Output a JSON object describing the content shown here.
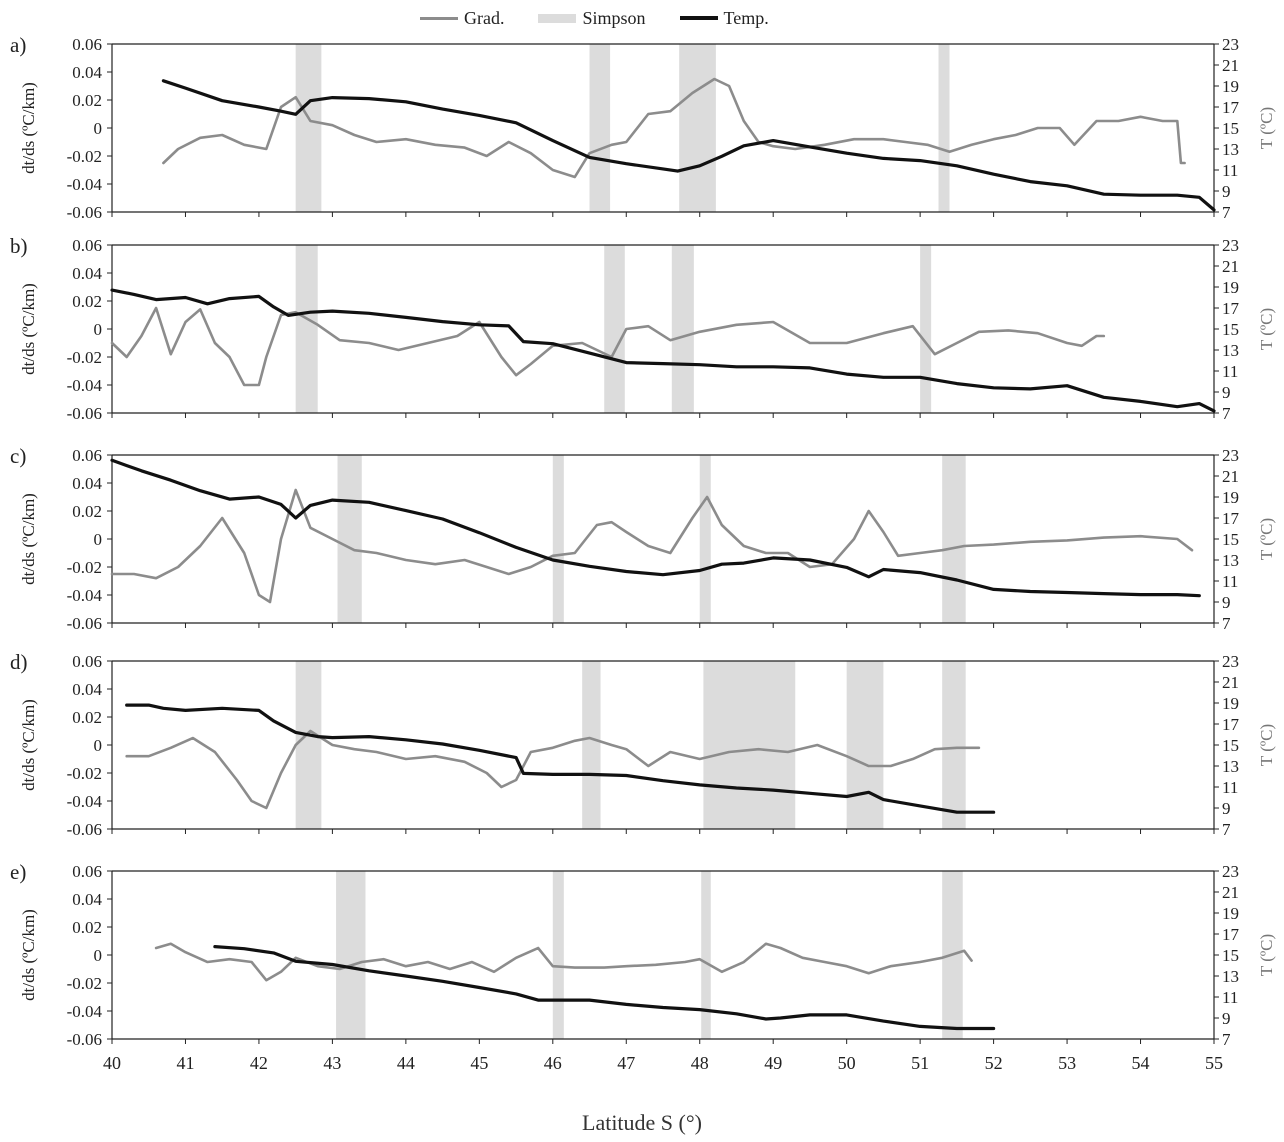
{
  "legend": {
    "grad_label": "Grad.",
    "simpson_label": "Simpson",
    "temp_label": "Temp."
  },
  "colors": {
    "grad": "#8c8c8c",
    "simpson": "#dcdcdc",
    "temp": "#111111"
  },
  "xaxis_label": "Latitude S (°)",
  "chart_data": [
    {
      "type": "line",
      "panel_label": "a)",
      "xlim": [
        40,
        55
      ],
      "ylabel": "dt/ds (ºC/km)",
      "ylim": [
        -0.06,
        0.06
      ],
      "y2label": "T (ºC)",
      "y2lim": [
        7,
        23
      ],
      "simpson_bands": [
        [
          42.5,
          42.85
        ],
        [
          46.5,
          46.78
        ],
        [
          47.72,
          48.22
        ],
        [
          51.25,
          51.4
        ]
      ],
      "series": [
        {
          "name": "Grad.",
          "axis": "left",
          "x": [
            40.7,
            40.9,
            41.2,
            41.5,
            41.8,
            42.1,
            42.3,
            42.5,
            42.7,
            43.0,
            43.3,
            43.6,
            44.0,
            44.4,
            44.8,
            45.1,
            45.4,
            45.7,
            46.0,
            46.3,
            46.5,
            46.8,
            47.0,
            47.3,
            47.6,
            47.9,
            48.2,
            48.4,
            48.6,
            48.8,
            49.0,
            49.3,
            49.7,
            50.1,
            50.5,
            50.8,
            51.1,
            51.4,
            51.7,
            52.0,
            52.3,
            52.6,
            52.9,
            53.1,
            53.4,
            53.7,
            54.0,
            54.3,
            54.5,
            54.55,
            54.6
          ],
          "y": [
            -0.025,
            -0.015,
            -0.007,
            -0.005,
            -0.012,
            -0.015,
            0.015,
            0.022,
            0.005,
            0.002,
            -0.005,
            -0.01,
            -0.008,
            -0.012,
            -0.014,
            -0.02,
            -0.01,
            -0.018,
            -0.03,
            -0.035,
            -0.018,
            -0.012,
            -0.01,
            0.01,
            0.012,
            0.025,
            0.035,
            0.03,
            0.005,
            -0.01,
            -0.013,
            -0.015,
            -0.012,
            -0.008,
            -0.008,
            -0.01,
            -0.012,
            -0.017,
            -0.012,
            -0.008,
            -0.005,
            0.0,
            0.0,
            -0.012,
            0.005,
            0.005,
            0.008,
            0.005,
            0.005,
            -0.025,
            -0.025
          ]
        },
        {
          "name": "Temp.",
          "axis": "right",
          "x": [
            40.7,
            41.0,
            41.5,
            42.0,
            42.3,
            42.5,
            42.7,
            43.0,
            43.5,
            44.0,
            44.5,
            45.0,
            45.5,
            46.0,
            46.5,
            47.0,
            47.5,
            47.7,
            48.0,
            48.3,
            48.6,
            49.0,
            49.5,
            50.0,
            50.5,
            51.0,
            51.5,
            52.0,
            52.5,
            53.0,
            53.5,
            54.0,
            54.5,
            54.8,
            55.0
          ],
          "y": [
            19.5,
            18.8,
            17.6,
            17.0,
            16.6,
            16.3,
            17.6,
            17.9,
            17.8,
            17.5,
            16.8,
            16.2,
            15.5,
            13.8,
            12.2,
            11.6,
            11.1,
            10.9,
            11.4,
            12.3,
            13.3,
            13.8,
            13.2,
            12.6,
            12.1,
            11.9,
            11.4,
            10.6,
            9.9,
            9.5,
            8.7,
            8.6,
            8.6,
            8.4,
            7.2
          ]
        }
      ]
    },
    {
      "type": "line",
      "panel_label": "b)",
      "xlim": [
        40,
        55
      ],
      "ylabel": "dt/ds (ºC/km)",
      "ylim": [
        -0.06,
        0.06
      ],
      "y2label": "T (ºC)",
      "y2lim": [
        7,
        23
      ],
      "simpson_bands": [
        [
          42.5,
          42.8
        ],
        [
          46.7,
          46.98
        ],
        [
          47.62,
          47.92
        ],
        [
          51.0,
          51.15
        ]
      ],
      "series": [
        {
          "name": "Grad.",
          "axis": "left",
          "x": [
            40.0,
            40.2,
            40.4,
            40.6,
            40.8,
            41.0,
            41.2,
            41.4,
            41.6,
            41.8,
            42.0,
            42.1,
            42.3,
            42.5,
            42.8,
            43.1,
            43.5,
            43.9,
            44.3,
            44.7,
            45.0,
            45.3,
            45.5,
            45.7,
            46.0,
            46.4,
            46.8,
            47.0,
            47.3,
            47.6,
            48.0,
            48.5,
            49.0,
            49.5,
            50.0,
            50.5,
            50.9,
            51.2,
            51.5,
            51.8,
            52.2,
            52.6,
            53.0,
            53.2,
            53.4,
            53.5
          ],
          "y": [
            -0.01,
            -0.02,
            -0.005,
            0.015,
            -0.018,
            0.005,
            0.014,
            -0.01,
            -0.02,
            -0.04,
            -0.04,
            -0.02,
            0.01,
            0.012,
            0.003,
            -0.008,
            -0.01,
            -0.015,
            -0.01,
            -0.005,
            0.005,
            -0.02,
            -0.033,
            -0.025,
            -0.012,
            -0.01,
            -0.02,
            0.0,
            0.002,
            -0.008,
            -0.002,
            0.003,
            0.005,
            -0.01,
            -0.01,
            -0.003,
            0.002,
            -0.018,
            -0.01,
            -0.002,
            -0.001,
            -0.003,
            -0.01,
            -0.012,
            -0.005,
            -0.005
          ]
        },
        {
          "name": "Temp.",
          "axis": "right",
          "x": [
            40.0,
            40.3,
            40.6,
            41.0,
            41.3,
            41.6,
            42.0,
            42.2,
            42.4,
            42.7,
            43.0,
            43.5,
            44.0,
            44.5,
            45.0,
            45.4,
            45.6,
            46.0,
            46.5,
            47.0,
            47.5,
            48.0,
            48.5,
            49.0,
            49.5,
            50.0,
            50.5,
            51.0,
            51.5,
            52.0,
            52.5,
            53.0,
            53.5,
            54.0,
            54.5,
            54.8,
            55.0
          ],
          "y": [
            18.7,
            18.3,
            17.8,
            18.0,
            17.4,
            17.9,
            18.1,
            17.1,
            16.3,
            16.6,
            16.7,
            16.5,
            16.1,
            15.7,
            15.4,
            15.3,
            13.8,
            13.6,
            12.7,
            11.8,
            11.7,
            11.6,
            11.4,
            11.4,
            11.3,
            10.7,
            10.4,
            10.4,
            9.8,
            9.4,
            9.3,
            9.6,
            8.5,
            8.1,
            7.6,
            7.9,
            7.2
          ]
        }
      ]
    },
    {
      "type": "line",
      "panel_label": "c)",
      "xlim": [
        40,
        55
      ],
      "ylabel": "dt/ds (ºC/km)",
      "ylim": [
        -0.06,
        0.06
      ],
      "y2label": "T (ºC)",
      "y2lim": [
        7,
        23
      ],
      "simpson_bands": [
        [
          43.07,
          43.4
        ],
        [
          46.0,
          46.15
        ],
        [
          48.0,
          48.15
        ],
        [
          51.3,
          51.62
        ]
      ],
      "series": [
        {
          "name": "Grad.",
          "axis": "left",
          "x": [
            40.0,
            40.3,
            40.6,
            40.9,
            41.2,
            41.5,
            41.8,
            42.0,
            42.15,
            42.3,
            42.5,
            42.7,
            43.0,
            43.3,
            43.6,
            44.0,
            44.4,
            44.8,
            45.1,
            45.4,
            45.7,
            46.0,
            46.3,
            46.6,
            46.8,
            47.0,
            47.3,
            47.6,
            47.9,
            48.1,
            48.3,
            48.6,
            48.9,
            49.2,
            49.5,
            49.8,
            50.1,
            50.3,
            50.5,
            50.7,
            51.0,
            51.3,
            51.6,
            52.0,
            52.5,
            53.0,
            53.5,
            54.0,
            54.5,
            54.7
          ],
          "y": [
            -0.025,
            -0.025,
            -0.028,
            -0.02,
            -0.005,
            0.015,
            -0.01,
            -0.04,
            -0.045,
            0.0,
            0.035,
            0.008,
            0.0,
            -0.008,
            -0.01,
            -0.015,
            -0.018,
            -0.015,
            -0.02,
            -0.025,
            -0.02,
            -0.012,
            -0.01,
            0.01,
            0.012,
            0.005,
            -0.005,
            -0.01,
            0.015,
            0.03,
            0.01,
            -0.005,
            -0.01,
            -0.01,
            -0.02,
            -0.018,
            0.0,
            0.02,
            0.005,
            -0.012,
            -0.01,
            -0.008,
            -0.005,
            -0.004,
            -0.002,
            -0.001,
            0.001,
            0.002,
            0.0,
            -0.008
          ]
        },
        {
          "name": "Temp.",
          "axis": "right",
          "x": [
            40.0,
            40.4,
            40.8,
            41.2,
            41.6,
            42.0,
            42.3,
            42.5,
            42.7,
            43.0,
            43.5,
            44.0,
            44.5,
            45.0,
            45.5,
            46.0,
            46.5,
            47.0,
            47.5,
            48.0,
            48.3,
            48.6,
            49.0,
            49.5,
            50.0,
            50.3,
            50.5,
            51.0,
            51.5,
            52.0,
            52.5,
            53.0,
            53.5,
            54.0,
            54.5,
            54.8
          ],
          "y": [
            22.5,
            21.5,
            20.6,
            19.6,
            18.8,
            19.0,
            18.3,
            17.0,
            18.2,
            18.7,
            18.5,
            17.7,
            16.9,
            15.6,
            14.2,
            13.0,
            12.4,
            11.9,
            11.6,
            12.0,
            12.6,
            12.7,
            13.2,
            13.0,
            12.3,
            11.4,
            12.1,
            11.8,
            11.1,
            10.2,
            10.0,
            9.9,
            9.8,
            9.7,
            9.7,
            9.6
          ]
        }
      ]
    },
    {
      "type": "line",
      "panel_label": "d)",
      "xlim": [
        40,
        55
      ],
      "ylabel": "dt/ds (ºC/km)",
      "ylim": [
        -0.06,
        0.06
      ],
      "y2label": "T (ºC)",
      "y2lim": [
        7,
        23
      ],
      "simpson_bands": [
        [
          42.5,
          42.85
        ],
        [
          46.4,
          46.65
        ],
        [
          48.05,
          49.3
        ],
        [
          50.0,
          50.5
        ],
        [
          51.3,
          51.62
        ]
      ],
      "series": [
        {
          "name": "Grad.",
          "axis": "left",
          "x": [
            40.2,
            40.5,
            40.8,
            41.1,
            41.4,
            41.7,
            41.9,
            42.1,
            42.3,
            42.5,
            42.7,
            43.0,
            43.3,
            43.6,
            44.0,
            44.4,
            44.8,
            45.1,
            45.3,
            45.5,
            45.7,
            46.0,
            46.3,
            46.5,
            46.8,
            47.0,
            47.3,
            47.6,
            48.0,
            48.4,
            48.8,
            49.2,
            49.6,
            50.0,
            50.3,
            50.6,
            50.9,
            51.2,
            51.5,
            51.8
          ],
          "y": [
            -0.008,
            -0.008,
            -0.002,
            0.005,
            -0.005,
            -0.025,
            -0.04,
            -0.045,
            -0.02,
            0.0,
            0.01,
            0.0,
            -0.003,
            -0.005,
            -0.01,
            -0.008,
            -0.012,
            -0.02,
            -0.03,
            -0.025,
            -0.005,
            -0.002,
            0.003,
            0.005,
            0.0,
            -0.003,
            -0.015,
            -0.005,
            -0.01,
            -0.005,
            -0.003,
            -0.005,
            0.0,
            -0.008,
            -0.015,
            -0.015,
            -0.01,
            -0.003,
            -0.002,
            -0.002
          ]
        },
        {
          "name": "Temp.",
          "axis": "right",
          "x": [
            40.2,
            40.5,
            40.7,
            41.0,
            41.5,
            42.0,
            42.2,
            42.5,
            42.8,
            43.0,
            43.5,
            44.0,
            44.5,
            45.0,
            45.5,
            45.6,
            46.0,
            46.5,
            47.0,
            47.5,
            48.0,
            48.5,
            49.0,
            49.5,
            50.0,
            50.3,
            50.5,
            51.0,
            51.5,
            52.0
          ],
          "y": [
            18.8,
            18.8,
            18.5,
            18.3,
            18.5,
            18.3,
            17.3,
            16.2,
            15.8,
            15.7,
            15.8,
            15.5,
            15.1,
            14.5,
            13.8,
            12.3,
            12.2,
            12.2,
            12.1,
            11.6,
            11.2,
            10.9,
            10.7,
            10.4,
            10.1,
            10.5,
            9.8,
            9.2,
            8.6,
            8.6
          ]
        }
      ]
    },
    {
      "type": "line",
      "panel_label": "e)",
      "xlim": [
        40,
        55
      ],
      "ylabel": "dt/ds (ºC/km)",
      "ylim": [
        -0.06,
        0.06
      ],
      "y2label": "T (ºC)",
      "y2lim": [
        7,
        23
      ],
      "simpson_bands": [
        [
          43.05,
          43.45
        ],
        [
          46.0,
          46.15
        ],
        [
          48.02,
          48.15
        ],
        [
          51.3,
          51.58
        ]
      ],
      "series": [
        {
          "name": "Grad.",
          "axis": "left",
          "x": [
            40.6,
            40.8,
            41.0,
            41.3,
            41.6,
            41.9,
            42.1,
            42.3,
            42.5,
            42.8,
            43.1,
            43.4,
            43.7,
            44.0,
            44.3,
            44.6,
            44.9,
            45.2,
            45.5,
            45.8,
            46.0,
            46.3,
            46.7,
            47.0,
            47.4,
            47.8,
            48.0,
            48.3,
            48.6,
            48.9,
            49.1,
            49.4,
            49.7,
            50.0,
            50.3,
            50.6,
            51.0,
            51.3,
            51.6,
            51.7
          ],
          "y": [
            0.005,
            0.008,
            0.002,
            -0.005,
            -0.003,
            -0.005,
            -0.018,
            -0.012,
            -0.002,
            -0.008,
            -0.01,
            -0.005,
            -0.003,
            -0.008,
            -0.005,
            -0.01,
            -0.005,
            -0.012,
            -0.002,
            0.005,
            -0.008,
            -0.009,
            -0.009,
            -0.008,
            -0.007,
            -0.005,
            -0.003,
            -0.012,
            -0.005,
            0.008,
            0.005,
            -0.002,
            -0.005,
            -0.008,
            -0.013,
            -0.008,
            -0.005,
            -0.002,
            0.003,
            -0.004
          ]
        },
        {
          "name": "Temp.",
          "axis": "right",
          "x": [
            41.4,
            41.8,
            42.2,
            42.5,
            43.0,
            43.5,
            44.0,
            44.5,
            45.0,
            45.5,
            45.8,
            46.0,
            46.5,
            47.0,
            47.5,
            48.0,
            48.5,
            48.9,
            49.1,
            49.5,
            50.0,
            50.5,
            51.0,
            51.5,
            52.0
          ],
          "y": [
            15.8,
            15.6,
            15.2,
            14.4,
            14.1,
            13.5,
            13.0,
            12.5,
            11.9,
            11.3,
            10.7,
            10.7,
            10.7,
            10.3,
            10.0,
            9.8,
            9.4,
            8.9,
            9.0,
            9.3,
            9.3,
            8.7,
            8.2,
            8.0,
            8.0
          ]
        }
      ]
    }
  ]
}
